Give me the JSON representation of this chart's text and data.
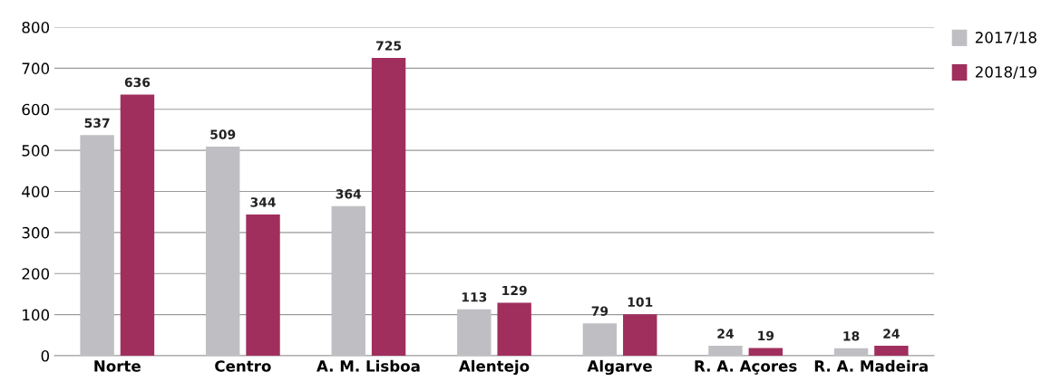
{
  "chart_data": {
    "type": "bar",
    "categories": [
      "Norte",
      "Centro",
      "A. M. Lisboa",
      "Alentejo",
      "Algarve",
      "R. A. Açores",
      "R. A. Madeira"
    ],
    "series": [
      {
        "name": "2017/18",
        "color": "#bfbfc3",
        "values": [
          537,
          509,
          364,
          113,
          79,
          24,
          18
        ]
      },
      {
        "name": "2018/19",
        "color": "#a02f5e",
        "values": [
          636,
          344,
          725,
          129,
          101,
          19,
          24
        ]
      }
    ],
    "ylim": [
      0,
      800
    ],
    "yticks": [
      0,
      100,
      200,
      300,
      400,
      500,
      600,
      700,
      800
    ],
    "grid": "y",
    "legend": "top right",
    "data_labels": true
  }
}
